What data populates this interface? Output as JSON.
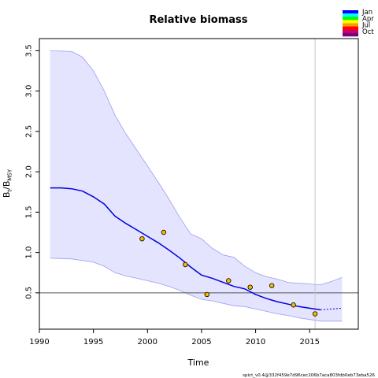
{
  "chart_data": {
    "type": "line",
    "title": "Relative biomass",
    "xlabel": "Time",
    "ylabel": {
      "main": "B",
      "sub1": "t",
      "mid": "/B",
      "sub2": "MSY"
    },
    "xlim": [
      1990,
      2019.5
    ],
    "ylim": [
      0.05,
      3.65
    ],
    "x_ticks": [
      1990,
      1995,
      2000,
      2005,
      2010,
      2015
    ],
    "y_ticks": [
      "0.5",
      "1.0",
      "1.5",
      "2.0",
      "2.5",
      "3.0",
      "3.5"
    ],
    "reference_line_y": 0.5,
    "vertical_line_x": 2015.5,
    "estimate": {
      "x": [
        1991,
        1992,
        1993,
        1994,
        1995,
        1996,
        1997,
        1998,
        1999,
        2000,
        2001,
        2002,
        2003,
        2004,
        2005,
        2006,
        2007,
        2008,
        2009,
        2010,
        2011,
        2012,
        2013,
        2014,
        2015,
        2016
      ],
      "y": [
        1.8,
        1.8,
        1.79,
        1.76,
        1.69,
        1.6,
        1.45,
        1.36,
        1.28,
        1.2,
        1.12,
        1.03,
        0.93,
        0.82,
        0.72,
        0.68,
        0.63,
        0.58,
        0.55,
        0.48,
        0.43,
        0.39,
        0.36,
        0.33,
        0.31,
        0.29
      ]
    },
    "forecast": {
      "x": [
        2016,
        2017,
        2018
      ],
      "y": [
        0.29,
        0.3,
        0.31
      ]
    },
    "ci_lower": {
      "x": [
        1991,
        1993,
        1995,
        1996,
        1997,
        1998,
        1999,
        2000,
        2001,
        2002,
        2003,
        2004,
        2005,
        2006,
        2007,
        2008,
        2009,
        2010,
        2011,
        2012,
        2013,
        2014,
        2015,
        2016,
        2017,
        2018
      ],
      "y": [
        0.93,
        0.92,
        0.88,
        0.83,
        0.75,
        0.71,
        0.68,
        0.65,
        0.62,
        0.58,
        0.53,
        0.47,
        0.42,
        0.4,
        0.37,
        0.34,
        0.33,
        0.3,
        0.27,
        0.24,
        0.22,
        0.19,
        0.17,
        0.15,
        0.15,
        0.15
      ]
    },
    "ci_upper": {
      "x": [
        1991,
        1993,
        1994,
        1995,
        1996,
        1997,
        1998,
        1999,
        2000,
        2001,
        2002,
        2003,
        2004,
        2005,
        2006,
        2007,
        2008,
        2009,
        2010,
        2011,
        2012,
        2013,
        2014,
        2015,
        2016,
        2017,
        2018
      ],
      "y": [
        3.5,
        3.49,
        3.42,
        3.25,
        3.0,
        2.7,
        2.47,
        2.27,
        2.07,
        1.87,
        1.66,
        1.43,
        1.23,
        1.17,
        1.05,
        0.97,
        0.94,
        0.83,
        0.75,
        0.7,
        0.67,
        0.63,
        0.62,
        0.61,
        0.6,
        0.64,
        0.69
      ]
    },
    "observations": {
      "x": [
        1999.5,
        2001.5,
        2003.5,
        2005.5,
        2007.5,
        2009.5,
        2011.5,
        2013.5,
        2015.5
      ],
      "y": [
        1.17,
        1.25,
        0.85,
        0.48,
        0.65,
        0.57,
        0.59,
        0.35,
        0.24
      ]
    },
    "colors": {
      "estimate": "#0000e0",
      "ci_fill": "#e4e4ff",
      "ci_edge": "#9d9df0",
      "reference_line": "#555555",
      "vertical_line": "#c8c8c8",
      "obs_fill": "#f7b800"
    },
    "legend": {
      "placement": "top-right",
      "labels": [
        "Jan",
        "Apr",
        "Jul",
        "Oct"
      ],
      "gradient": [
        "#0000ff",
        "#00ffff",
        "#00ff00",
        "#ffff00",
        "#ff9900",
        "#ff0000",
        "#cc0066",
        "#7a0080"
      ]
    }
  },
  "footer": "spict_v0.4@332f459e7d96cec206b7aca803fdb0eb73eba526"
}
